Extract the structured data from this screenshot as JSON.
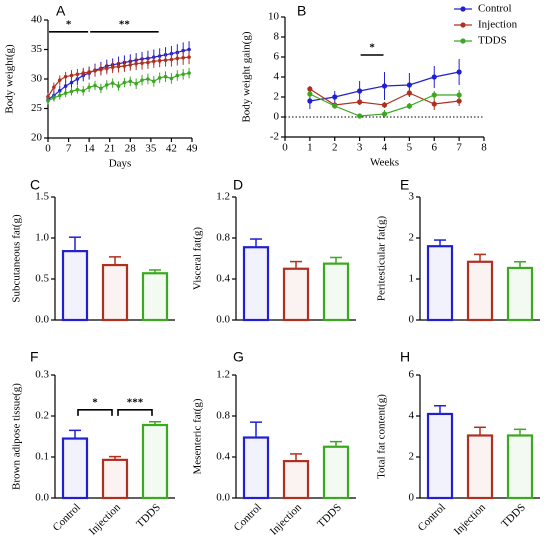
{
  "chart_data": [
    {
      "type": "line",
      "label": "A",
      "xlabel": "Days",
      "ylabel": "Body weight(g)",
      "x": [
        0,
        2,
        4,
        6,
        8,
        10,
        12,
        14,
        16,
        18,
        20,
        22,
        24,
        26,
        28,
        30,
        32,
        34,
        36,
        38,
        40,
        42,
        44,
        46,
        48
      ],
      "xlim": [
        0,
        49
      ],
      "xticks": [
        0,
        7,
        14,
        21,
        28,
        35,
        42,
        49
      ],
      "ylim": [
        20,
        40
      ],
      "yticks": [
        20,
        25,
        30,
        35,
        40
      ],
      "series": [
        {
          "name": "Control",
          "color": "#2020d0",
          "values": [
            26.5,
            27.2,
            28.0,
            28.8,
            29.4,
            30.0,
            30.6,
            31.0,
            31.5,
            31.8,
            32.2,
            32.4,
            32.6,
            32.8,
            33.0,
            33.2,
            33.4,
            33.5,
            33.7,
            33.9,
            34.1,
            34.3,
            34.5,
            34.8,
            35.0
          ],
          "errors": [
            0.8,
            0.9,
            0.9,
            1.0,
            1.0,
            1.0,
            1.0,
            1.1,
            1.1,
            1.1,
            1.1,
            1.1,
            1.2,
            1.2,
            1.2,
            1.2,
            1.2,
            1.3,
            1.3,
            1.3,
            1.3,
            1.3,
            1.4,
            1.4,
            1.4
          ]
        },
        {
          "name": "Injection",
          "color": "#b03020",
          "values": [
            27.0,
            28.6,
            29.8,
            30.4,
            30.6,
            30.8,
            31.0,
            31.2,
            31.4,
            31.6,
            31.8,
            32.0,
            32.1,
            32.2,
            32.4,
            32.6,
            32.7,
            32.8,
            33.0,
            33.1,
            33.2,
            33.3,
            33.5,
            33.6,
            33.7
          ],
          "errors": [
            0.7,
            0.8,
            0.8,
            0.8,
            0.9,
            0.9,
            0.9,
            0.9,
            0.9,
            1.0,
            1.0,
            1.0,
            1.0,
            1.0,
            1.0,
            1.1,
            1.1,
            1.1,
            1.1,
            1.1,
            1.1,
            1.2,
            1.2,
            1.2,
            1.2
          ]
        },
        {
          "name": "TDDS",
          "color": "#3aa820",
          "values": [
            26.3,
            26.8,
            27.2,
            27.6,
            27.9,
            28.2,
            28.0,
            28.6,
            28.9,
            28.4,
            29.0,
            29.3,
            28.8,
            29.4,
            29.6,
            29.2,
            29.8,
            30.0,
            29.6,
            30.2,
            30.4,
            30.1,
            30.6,
            30.8,
            31.0
          ],
          "errors": [
            0.6,
            0.6,
            0.7,
            0.7,
            0.7,
            0.7,
            0.8,
            0.8,
            0.8,
            0.8,
            0.8,
            0.8,
            0.8,
            0.8,
            0.8,
            0.9,
            0.9,
            0.9,
            0.9,
            0.9,
            0.9,
            0.9,
            0.9,
            0.9,
            0.9
          ]
        }
      ],
      "annotations": [
        {
          "text": "*",
          "x1": 0,
          "x2": 14,
          "y": 38
        },
        {
          "text": "**",
          "x1": 14,
          "x2": 38,
          "y": 38
        }
      ]
    },
    {
      "type": "line",
      "label": "B",
      "xlabel": "Weeks",
      "ylabel": "Body weight gain(g)",
      "x": [
        1,
        2,
        3,
        4,
        5,
        6,
        7
      ],
      "xlim": [
        0,
        8
      ],
      "xticks": [
        0,
        1,
        2,
        3,
        4,
        5,
        6,
        7,
        8
      ],
      "ylim": [
        -2,
        10
      ],
      "yticks": [
        -2,
        0,
        2,
        4,
        6,
        8,
        10
      ],
      "hline": 0,
      "legend": "upper right",
      "series": [
        {
          "name": "Control",
          "color": "#2020d0",
          "values": [
            1.6,
            2.0,
            2.6,
            3.1,
            3.2,
            4.0,
            4.5
          ],
          "errors": [
            0.8,
            0.6,
            1.0,
            1.4,
            1.2,
            1.1,
            1.3
          ]
        },
        {
          "name": "Injection",
          "color": "#b03020",
          "values": [
            2.8,
            1.2,
            1.5,
            1.2,
            2.4,
            1.3,
            1.6
          ],
          "errors": [
            0.3,
            0.2,
            0.3,
            0.3,
            0.3,
            0.6,
            0.5
          ]
        },
        {
          "name": "TDDS",
          "color": "#3aa820",
          "values": [
            2.3,
            1.1,
            0.1,
            0.3,
            1.1,
            2.2,
            2.2
          ],
          "errors": [
            0.3,
            0.2,
            0.1,
            0.4,
            0.3,
            0.4,
            0.5
          ]
        }
      ],
      "annotations": [
        {
          "text": "*",
          "x1": 3,
          "x2": 4,
          "y": 6.2
        }
      ]
    },
    {
      "type": "bar",
      "label": "C",
      "ylabel": "Subcutaneous fat(g)",
      "categories": [
        null,
        null,
        null
      ],
      "colors": [
        "#2020d0",
        "#b03020",
        "#3aa820"
      ],
      "values": [
        0.84,
        0.67,
        0.57
      ],
      "errors": [
        0.17,
        0.1,
        0.04
      ],
      "ylim": [
        0,
        1.5
      ],
      "yticks": [
        {
          "value": 0,
          "label": "0.0"
        },
        0.5,
        {
          "value": 1,
          "label": "1.0"
        },
        1.5
      ]
    },
    {
      "type": "bar",
      "label": "D",
      "ylabel": "Visceral fat(g)",
      "categories": [
        null,
        null,
        null
      ],
      "colors": [
        "#2020d0",
        "#b03020",
        "#3aa820"
      ],
      "values": [
        0.71,
        0.5,
        0.55
      ],
      "errors": [
        0.08,
        0.07,
        0.06
      ],
      "ylim": [
        0,
        1.2
      ],
      "yticks": [
        {
          "value": 0,
          "label": "0.0"
        },
        0.4,
        0.8,
        1.2
      ]
    },
    {
      "type": "bar",
      "label": "E",
      "ylabel": "Peritesticular fat(g)",
      "categories": [
        null,
        null,
        null
      ],
      "colors": [
        "#2020d0",
        "#b03020",
        "#3aa820"
      ],
      "values": [
        1.8,
        1.42,
        1.27
      ],
      "errors": [
        0.15,
        0.18,
        0.15
      ],
      "ylim": [
        0,
        3
      ],
      "yticks": [
        0,
        1,
        2,
        3
      ]
    },
    {
      "type": "bar",
      "label": "F",
      "ylabel": "Brown adipose tissue(g)",
      "categories": [
        "Control",
        "Injection",
        "TDDS"
      ],
      "colors": [
        "#2020d0",
        "#b03020",
        "#3aa820"
      ],
      "values": [
        0.145,
        0.093,
        0.178
      ],
      "errors": [
        0.02,
        0.008,
        0.008
      ],
      "ylim": [
        0,
        0.3
      ],
      "yticks": [
        {
          "value": 0,
          "label": "0.0"
        },
        0.1,
        0.2,
        0.3
      ],
      "annotations": [
        {
          "text": "*",
          "from": 0,
          "to": 1,
          "y": 0.215
        },
        {
          "text": "***",
          "from": 1,
          "to": 2,
          "y": 0.215
        }
      ]
    },
    {
      "type": "bar",
      "label": "G",
      "ylabel": "Mesenteric fat(g)",
      "categories": [
        "Control",
        "Injection",
        "TDDS"
      ],
      "colors": [
        "#2020d0",
        "#b03020",
        "#3aa820"
      ],
      "values": [
        0.59,
        0.36,
        0.5
      ],
      "errors": [
        0.15,
        0.07,
        0.05
      ],
      "ylim": [
        0,
        1.2
      ],
      "yticks": [
        {
          "value": 0,
          "label": "0.0"
        },
        0.4,
        0.8,
        1.2
      ]
    },
    {
      "type": "bar",
      "label": "H",
      "ylabel": "Total fat content(g)",
      "categories": [
        "Control",
        "Injection",
        "TDDS"
      ],
      "colors": [
        "#2020d0",
        "#b03020",
        "#3aa820"
      ],
      "values": [
        4.1,
        3.05,
        3.05
      ],
      "errors": [
        0.4,
        0.4,
        0.3
      ],
      "ylim": [
        0,
        6
      ],
      "yticks": [
        0,
        2,
        4,
        6
      ]
    }
  ]
}
